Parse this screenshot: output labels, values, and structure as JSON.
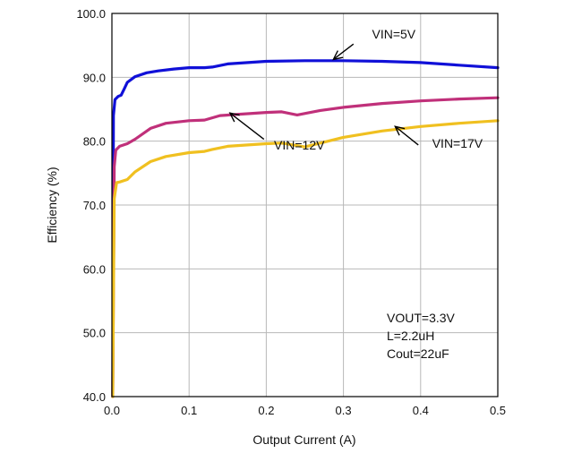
{
  "chart_data": {
    "type": "line",
    "title": "",
    "xlabel": "Output Current (A)",
    "ylabel": "Efficiency (%)",
    "xlim": [
      0,
      0.5
    ],
    "ylim": [
      40,
      100
    ],
    "grid": true,
    "x_ticks": [
      "0.0",
      "0.1",
      "0.2",
      "0.3",
      "0.4",
      "0.5"
    ],
    "y_ticks": [
      "40.0",
      "50.0",
      "60.0",
      "70.0",
      "80.0",
      "90.0",
      "100.0"
    ],
    "series": [
      {
        "name": "VIN=5V",
        "color": "#1010d8",
        "points": [
          [
            0.001,
            40
          ],
          [
            0.002,
            84
          ],
          [
            0.004,
            86.5
          ],
          [
            0.008,
            87
          ],
          [
            0.012,
            87.2
          ],
          [
            0.016,
            88.2
          ],
          [
            0.02,
            89.2
          ],
          [
            0.03,
            90.1
          ],
          [
            0.045,
            90.7
          ],
          [
            0.06,
            91
          ],
          [
            0.08,
            91.3
          ],
          [
            0.1,
            91.5
          ],
          [
            0.12,
            91.5
          ],
          [
            0.13,
            91.6
          ],
          [
            0.15,
            92.1
          ],
          [
            0.2,
            92.5
          ],
          [
            0.25,
            92.6
          ],
          [
            0.3,
            92.6
          ],
          [
            0.35,
            92.5
          ],
          [
            0.4,
            92.3
          ],
          [
            0.45,
            91.9
          ],
          [
            0.5,
            91.5
          ]
        ]
      },
      {
        "name": "VIN=12V",
        "color": "#c0307a",
        "points": [
          [
            0.001,
            40
          ],
          [
            0.003,
            76
          ],
          [
            0.005,
            78.6
          ],
          [
            0.01,
            79.2
          ],
          [
            0.02,
            79.6
          ],
          [
            0.03,
            80.3
          ],
          [
            0.05,
            82
          ],
          [
            0.07,
            82.8
          ],
          [
            0.1,
            83.2
          ],
          [
            0.12,
            83.3
          ],
          [
            0.14,
            84
          ],
          [
            0.2,
            84.5
          ],
          [
            0.22,
            84.6
          ],
          [
            0.24,
            84.1
          ],
          [
            0.27,
            84.8
          ],
          [
            0.3,
            85.3
          ],
          [
            0.35,
            85.9
          ],
          [
            0.4,
            86.3
          ],
          [
            0.45,
            86.6
          ],
          [
            0.5,
            86.8
          ]
        ]
      },
      {
        "name": "VIN=17V",
        "color": "#f0c020",
        "points": [
          [
            0.001,
            40
          ],
          [
            0.003,
            71
          ],
          [
            0.006,
            73.5
          ],
          [
            0.01,
            73.6
          ],
          [
            0.02,
            74
          ],
          [
            0.03,
            75.2
          ],
          [
            0.05,
            76.8
          ],
          [
            0.07,
            77.6
          ],
          [
            0.1,
            78.2
          ],
          [
            0.12,
            78.4
          ],
          [
            0.13,
            78.7
          ],
          [
            0.15,
            79.2
          ],
          [
            0.2,
            79.6
          ],
          [
            0.22,
            79.7
          ],
          [
            0.25,
            79.1
          ],
          [
            0.28,
            80
          ],
          [
            0.3,
            80.6
          ],
          [
            0.35,
            81.6
          ],
          [
            0.4,
            82.3
          ],
          [
            0.45,
            82.8
          ],
          [
            0.5,
            83.2
          ]
        ]
      }
    ],
    "annotations": [
      {
        "text": "VIN=5V",
        "color": "#111111",
        "label": [
          0.337,
          96.1
        ],
        "arrow_from": [
          0.313,
          95.2
        ],
        "arrow_to": [
          0.287,
          92.8
        ]
      },
      {
        "text": "VIN=12V",
        "color": "#111111",
        "label": [
          0.21,
          78.7
        ],
        "arrow_from": [
          0.197,
          80.3
        ],
        "arrow_to": [
          0.153,
          84.4
        ]
      },
      {
        "text": "VIN=17V",
        "color": "#111111",
        "label": [
          0.415,
          79.0
        ],
        "arrow_from": [
          0.397,
          79.4
        ],
        "arrow_to": [
          0.367,
          82.3
        ]
      }
    ],
    "note_lines": [
      "VOUT=3.3V",
      "L=2.2uH",
      "Cout=22uF"
    ]
  }
}
